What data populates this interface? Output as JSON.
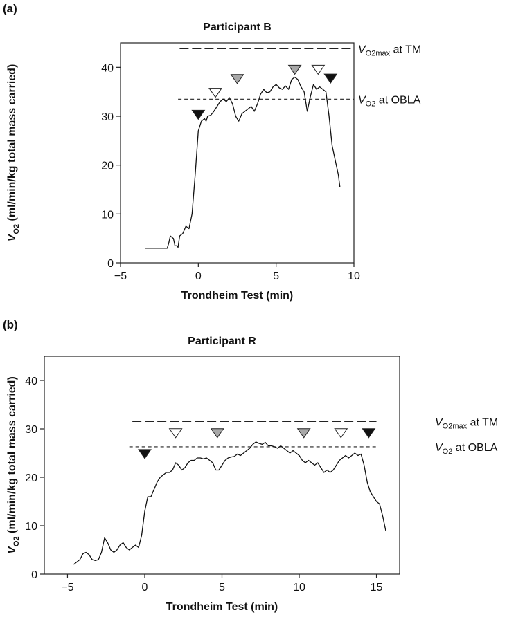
{
  "chart_data": [
    {
      "type": "line",
      "panel_label": "(a)",
      "title": "Participant B",
      "xlabel": "Trondheim Test (min)",
      "ylabel_var": "V",
      "ylabel_sub": "O2",
      "ylabel_rest": " (ml/min/kg total mass carried)",
      "xlim": [
        -5,
        10
      ],
      "ylim": [
        0,
        45
      ],
      "xticks": [
        -5,
        0,
        5,
        10
      ],
      "yticks": [
        0,
        10,
        20,
        30,
        40
      ],
      "xtick_labels": [
        "−5",
        "0",
        "5",
        "10"
      ],
      "ytick_labels": [
        "0",
        "10",
        "20",
        "30",
        "40"
      ],
      "reference_lines": [
        {
          "label_var": "V",
          "label_sub": "O2max",
          "label_rest": " at TM",
          "y": 43.8,
          "x_start": -1.2,
          "x_end": 10,
          "style": "long-dash"
        },
        {
          "label_var": "V",
          "label_sub": "O2",
          "label_rest": " at OBLA",
          "y": 33.5,
          "x_start": -1.3,
          "x_end": 10,
          "style": "short-dash"
        }
      ],
      "markers": [
        {
          "x": 0.0,
          "y": 30.3,
          "fill": "black"
        },
        {
          "x": 1.1,
          "y": 34.8,
          "fill": "white"
        },
        {
          "x": 2.5,
          "y": 37.6,
          "fill": "gray"
        },
        {
          "x": 6.2,
          "y": 39.5,
          "fill": "gray"
        },
        {
          "x": 7.7,
          "y": 39.5,
          "fill": "white"
        },
        {
          "x": 8.5,
          "y": 37.7,
          "fill": "black"
        }
      ],
      "series": [
        {
          "x": [
            -3.4,
            -3.0,
            -2.5,
            -2.0,
            -1.9,
            -1.8,
            -1.6,
            -1.5,
            -1.4,
            -1.3,
            -1.2,
            -1.0,
            -0.8,
            -0.6,
            -0.4,
            -0.2,
            0.0,
            0.2,
            0.4,
            0.5,
            0.6,
            0.8,
            1.0,
            1.2,
            1.4,
            1.6,
            1.8,
            2.0,
            2.2,
            2.4,
            2.6,
            2.8,
            3.0,
            3.2,
            3.4,
            3.6,
            3.8,
            4.0,
            4.2,
            4.4,
            4.6,
            4.8,
            5.0,
            5.2,
            5.4,
            5.6,
            5.8,
            6.0,
            6.2,
            6.4,
            6.6,
            6.8,
            7.0,
            7.2,
            7.4,
            7.6,
            7.8,
            8.0,
            8.2,
            8.4,
            8.6,
            8.8,
            9.0,
            9.1
          ],
          "y": [
            3.0,
            3.0,
            3.0,
            3.0,
            4.0,
            5.5,
            5.0,
            3.5,
            3.5,
            3.2,
            5.5,
            6.0,
            7.5,
            7.0,
            10.0,
            18.0,
            27.0,
            29.0,
            29.5,
            29.0,
            30.0,
            30.2,
            31.0,
            32.0,
            33.0,
            33.5,
            33.0,
            33.8,
            32.5,
            30.0,
            29.0,
            30.5,
            31.0,
            31.5,
            32.0,
            31.0,
            32.5,
            34.5,
            35.5,
            34.8,
            35.0,
            36.0,
            36.5,
            35.8,
            35.5,
            36.2,
            35.5,
            37.5,
            38.0,
            37.5,
            36.0,
            35.0,
            31.0,
            34.0,
            36.5,
            35.5,
            36.0,
            35.5,
            35.0,
            30.0,
            24.0,
            21.0,
            18.0,
            15.5
          ]
        }
      ]
    },
    {
      "type": "line",
      "panel_label": "(b)",
      "title": "Participant R",
      "xlabel": "Trondheim Test (min)",
      "ylabel_var": "V",
      "ylabel_sub": "O2",
      "ylabel_rest": " (ml/min/kg total mass carried)",
      "xlim": [
        -6.5,
        16.5
      ],
      "ylim": [
        0,
        45
      ],
      "xticks": [
        -5,
        0,
        5,
        10,
        15
      ],
      "yticks": [
        0,
        10,
        20,
        30,
        40
      ],
      "xtick_labels": [
        "−5",
        "0",
        "5",
        "10",
        "15"
      ],
      "ytick_labels": [
        "0",
        "10",
        "20",
        "30",
        "40"
      ],
      "reference_lines": [
        {
          "label_var": "V",
          "label_sub": "O2max",
          "label_rest": " at TM",
          "y": 31.5,
          "x_start": -0.8,
          "x_end": 15.0,
          "style": "long-dash"
        },
        {
          "label_var": "V",
          "label_sub": "O2",
          "label_rest": " at OBLA",
          "y": 26.3,
          "x_start": -1.0,
          "x_end": 15.0,
          "style": "short-dash"
        }
      ],
      "markers": [
        {
          "x": 0.0,
          "y": 24.8,
          "fill": "black"
        },
        {
          "x": 2.0,
          "y": 29.1,
          "fill": "white"
        },
        {
          "x": 4.7,
          "y": 29.1,
          "fill": "gray"
        },
        {
          "x": 10.3,
          "y": 29.1,
          "fill": "gray"
        },
        {
          "x": 12.7,
          "y": 29.1,
          "fill": "white"
        },
        {
          "x": 14.5,
          "y": 29.1,
          "fill": "black"
        }
      ],
      "series": [
        {
          "x": [
            -4.6,
            -4.4,
            -4.2,
            -4.0,
            -3.8,
            -3.6,
            -3.4,
            -3.2,
            -3.0,
            -2.8,
            -2.6,
            -2.4,
            -2.2,
            -2.0,
            -1.8,
            -1.6,
            -1.4,
            -1.2,
            -1.0,
            -0.8,
            -0.6,
            -0.4,
            -0.2,
            0.0,
            0.2,
            0.4,
            0.6,
            0.8,
            1.0,
            1.2,
            1.4,
            1.6,
            1.8,
            2.0,
            2.2,
            2.4,
            2.6,
            2.8,
            3.0,
            3.2,
            3.4,
            3.6,
            3.8,
            4.0,
            4.2,
            4.4,
            4.6,
            4.8,
            5.0,
            5.2,
            5.4,
            5.6,
            5.8,
            6.0,
            6.2,
            6.4,
            6.6,
            6.8,
            7.0,
            7.2,
            7.4,
            7.6,
            7.8,
            8.0,
            8.2,
            8.4,
            8.6,
            8.8,
            9.0,
            9.2,
            9.4,
            9.6,
            9.8,
            10.0,
            10.2,
            10.4,
            10.6,
            10.8,
            11.0,
            11.2,
            11.4,
            11.6,
            11.8,
            12.0,
            12.2,
            12.4,
            12.6,
            12.8,
            13.0,
            13.2,
            13.4,
            13.6,
            13.8,
            14.0,
            14.2,
            14.4,
            14.6,
            14.8,
            15.0,
            15.2,
            15.4,
            15.6
          ],
          "y": [
            2.0,
            2.5,
            3.0,
            4.2,
            4.5,
            4.0,
            3.0,
            2.8,
            3.0,
            4.5,
            7.5,
            6.5,
            5.0,
            4.5,
            5.0,
            6.0,
            6.5,
            5.5,
            5.0,
            5.5,
            6.0,
            5.5,
            8.0,
            13.0,
            16.0,
            16.0,
            17.5,
            19.0,
            20.0,
            20.5,
            21.0,
            21.0,
            21.5,
            23.0,
            22.5,
            21.5,
            22.0,
            23.0,
            23.5,
            23.5,
            24.0,
            24.0,
            23.8,
            24.0,
            23.5,
            23.0,
            21.5,
            21.5,
            22.5,
            23.5,
            24.0,
            24.2,
            24.3,
            24.8,
            24.5,
            25.0,
            25.5,
            26.0,
            26.8,
            27.3,
            27.0,
            26.8,
            27.2,
            26.5,
            26.5,
            26.3,
            26.0,
            26.5,
            26.0,
            25.5,
            25.0,
            25.5,
            25.0,
            24.5,
            23.5,
            23.0,
            23.5,
            23.0,
            22.5,
            23.0,
            22.0,
            21.0,
            21.5,
            21.0,
            21.5,
            22.5,
            23.5,
            24.0,
            24.5,
            24.0,
            24.5,
            25.0,
            24.5,
            24.8,
            22.5,
            19.0,
            17.0,
            16.0,
            15.0,
            14.5,
            12.0,
            9.0
          ]
        }
      ]
    }
  ]
}
